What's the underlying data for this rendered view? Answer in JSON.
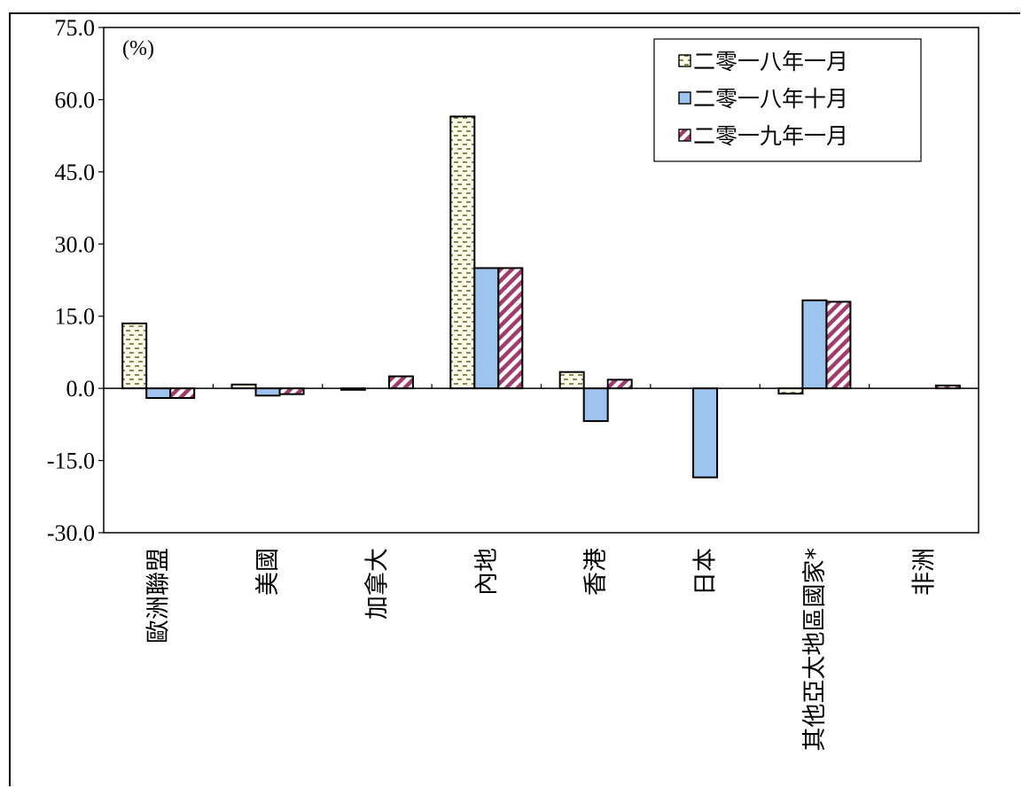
{
  "chart_data": {
    "type": "bar",
    "unit_label": "(%)",
    "categories": [
      "歐洲聯盟",
      "美國",
      "加拿大",
      "內地",
      "香港",
      "日本",
      "其他亞太地區國家*",
      "非洲"
    ],
    "series": [
      {
        "name": "二零一八年一月",
        "values": [
          13.5,
          0.8,
          -0.3,
          56.5,
          3.4,
          0.0,
          -1.1,
          0.0
        ],
        "pattern": "dash",
        "color": "#fffde8",
        "stroke": "#6b6b3a"
      },
      {
        "name": "二零一八年十月",
        "values": [
          -2.0,
          -1.5,
          0.0,
          25.0,
          -6.8,
          -18.5,
          18.3,
          0.0
        ],
        "pattern": "solid",
        "color": "#9dc3ee",
        "stroke": "#000000"
      },
      {
        "name": "二零一九年一月",
        "values": [
          -2.0,
          -1.2,
          2.5,
          25.0,
          1.8,
          0.0,
          18.0,
          0.6
        ],
        "pattern": "diag",
        "color": "#ffffff",
        "stroke": "#a03c6e"
      }
    ],
    "ylim": [
      -30,
      75
    ],
    "yticks": [
      "75.0",
      "60.0",
      "45.0",
      "30.0",
      "15.0",
      "0.0",
      "-15.0",
      "-30.0"
    ],
    "legend_position": "top-right",
    "grid": false
  }
}
